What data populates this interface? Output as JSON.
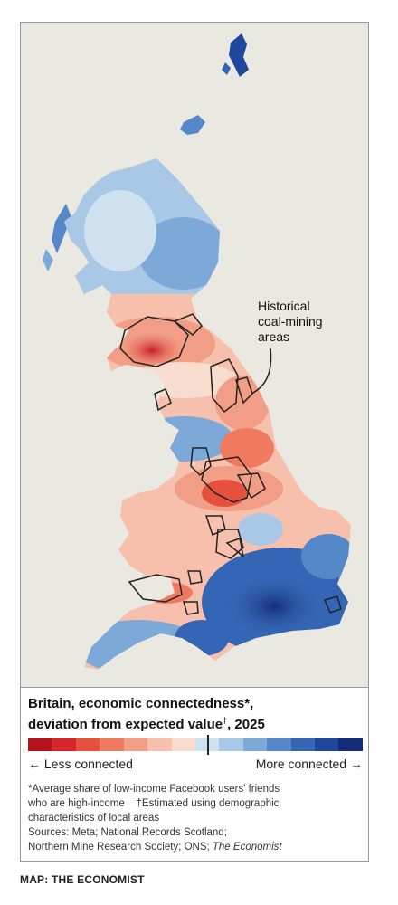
{
  "title_line1": "Britain, economic connectedness*,",
  "title_line2a": "deviation from expected value",
  "title_dagger": "†",
  "title_line2b": ", 2025",
  "legend": {
    "left_label": "← Less connected",
    "right_label": "More connected →",
    "swatches": [
      "#b5121b",
      "#d7262b",
      "#e8503e",
      "#ef7a60",
      "#f29d85",
      "#f6c0ad",
      "#f8dccd",
      "#cfe0ee",
      "#a9c8e6",
      "#7da9d8",
      "#5588c9",
      "#3566b5",
      "#1f479e",
      "#152d78"
    ]
  },
  "callout": {
    "line1": "Historical",
    "line2": "coal-mining",
    "line3": "areas"
  },
  "notes": {
    "line1": "*Average share of low-income Facebook users' friends",
    "line2": "who are high-income    †Estimated using demographic",
    "line3": "characteristics of local areas",
    "line4": "Sources: Meta; National Records Scotland;",
    "line5a": "Northern Mine Research Society; ONS; ",
    "line5b": "The Economist"
  },
  "credit": "MAP: THE ECONOMIST",
  "colors": {
    "background": "#e9e8e1",
    "accent_red": "#e3120b"
  }
}
